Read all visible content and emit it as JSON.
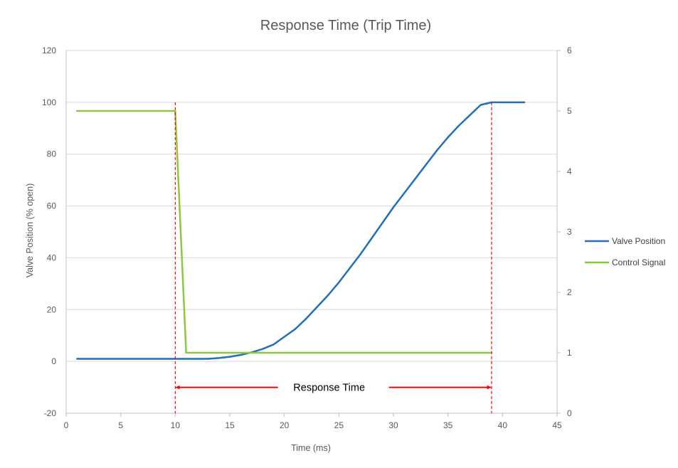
{
  "chart_data": {
    "type": "line",
    "title": "Response Time (Trip Time)",
    "xlabel": "Time (ms)",
    "ylabel": "Valve Position (% open)",
    "xlim": [
      0,
      45
    ],
    "ylim": [
      -20,
      120
    ],
    "y2lim": [
      0,
      6
    ],
    "xticks": [
      "0",
      "5",
      "10",
      "15",
      "20",
      "25",
      "30",
      "35",
      "40",
      "45"
    ],
    "yticks": [
      "-20",
      "0",
      "20",
      "40",
      "60",
      "80",
      "100",
      "120"
    ],
    "y2ticks": [
      "0",
      "1",
      "2",
      "3",
      "4",
      "5",
      "6"
    ],
    "grid": true,
    "legend_position": "right",
    "series": [
      {
        "name": "Valve Position",
        "axis": "left",
        "color": "#1f6fba",
        "x": [
          1,
          5,
          10,
          13,
          14,
          15,
          16,
          17,
          18,
          19,
          20,
          21,
          22,
          23,
          24,
          25,
          26,
          27,
          28,
          29,
          30,
          31,
          32,
          33,
          34,
          35,
          36,
          37,
          38,
          39,
          40,
          41,
          42
        ],
        "y": [
          1,
          1,
          1,
          1,
          1.3,
          1.8,
          2.5,
          3.5,
          4.8,
          6.5,
          9.5,
          12.5,
          16.5,
          21,
          25.5,
          30.5,
          36,
          41.5,
          47.5,
          53.5,
          59.5,
          65,
          70.5,
          76,
          81.5,
          86.5,
          91,
          95,
          99,
          100,
          100,
          100,
          100
        ]
      },
      {
        "name": "Control Signal",
        "axis": "right",
        "color": "#8dc63f",
        "x": [
          1,
          10,
          11,
          39
        ],
        "y": [
          5,
          5,
          1,
          1
        ]
      }
    ],
    "annotations": [
      {
        "type": "vline",
        "x": 10,
        "color": "#ff0000",
        "dash": true
      },
      {
        "type": "vline",
        "x": 39,
        "color": "#ff0000",
        "dash": true
      },
      {
        "type": "double-arrow",
        "x1": 10,
        "x2": 39,
        "y": -10,
        "label": "Response Time",
        "color": "#ff0000"
      }
    ]
  }
}
